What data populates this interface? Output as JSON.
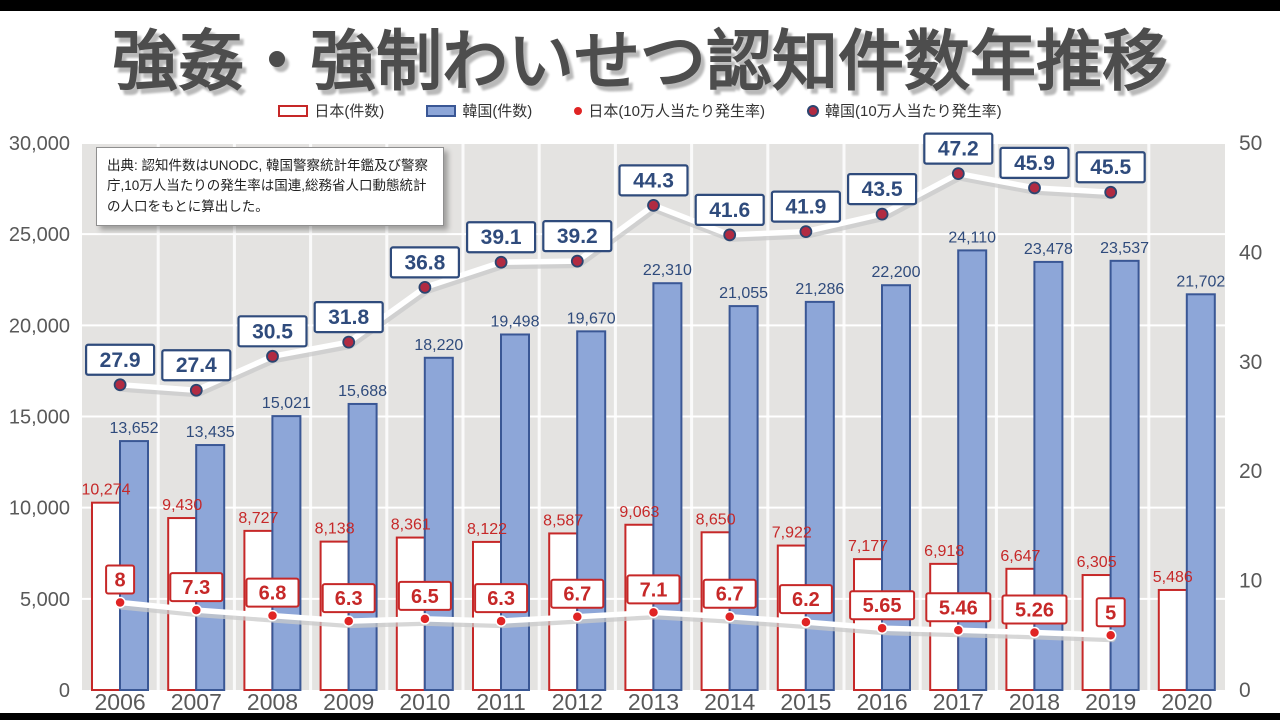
{
  "source_note": "出典: 認知件数はUNODC, 韓国警察統計年鑑及び警察庁,10万人当たりの発生率は国連,総務省人口動態統計の人口をもとに算出した。",
  "chart_data": {
    "type": "combo-bar-line",
    "title": "強姦・強制わいせつ認知件数年推移",
    "categories": [
      "2006",
      "2007",
      "2008",
      "2009",
      "2010",
      "2011",
      "2012",
      "2013",
      "2014",
      "2015",
      "2016",
      "2017",
      "2018",
      "2019",
      "2020"
    ],
    "series": [
      {
        "name": "日本(件数)",
        "type": "bar",
        "axis": "left",
        "values": [
          10274,
          9430,
          8727,
          8138,
          8361,
          8122,
          8587,
          9063,
          8650,
          7922,
          7177,
          6918,
          6647,
          6305,
          5486
        ]
      },
      {
        "name": "韓国(件数)",
        "type": "bar",
        "axis": "left",
        "values": [
          13652,
          13435,
          15021,
          15688,
          18220,
          19498,
          19670,
          22310,
          21055,
          21286,
          22200,
          24110,
          23478,
          23537,
          21702
        ]
      },
      {
        "name": "日本(10万人当たり発生率)",
        "type": "line",
        "axis": "right",
        "values": [
          8,
          7.3,
          6.8,
          6.3,
          6.5,
          6.3,
          6.7,
          7.1,
          6.7,
          6.2,
          5.65,
          5.46,
          5.26,
          5,
          null
        ]
      },
      {
        "name": "韓国(10万人当たり発生率)",
        "type": "line",
        "axis": "right",
        "values": [
          27.9,
          27.4,
          30.5,
          31.8,
          36.8,
          39.1,
          39.2,
          44.3,
          41.6,
          41.9,
          43.5,
          47.2,
          45.9,
          45.5,
          null
        ]
      }
    ],
    "left_axis": {
      "min": 0,
      "max": 30000,
      "step": 5000
    },
    "right_axis": {
      "min": 0,
      "max": 50,
      "step": 10
    },
    "grid": true,
    "legend_position": "top",
    "colors": {
      "plot_bg": "#e4e3e1",
      "grid": "#ffffff",
      "axis_text": "#595959",
      "japan_bar_fill": "#ffffff",
      "japan_bar_stroke": "#c62828",
      "japan_label": "#c62828",
      "korea_bar_fill": "#8da6d8",
      "korea_bar_stroke": "#3a5795",
      "korea_label": "#2f4b7c",
      "rate_line": "#ffffff",
      "line_shadow": "#c9c9c9",
      "japan_dot": "#e02424",
      "korea_dot_fill": "#b12b42",
      "korea_dot_ring": "#2b4570",
      "japan_box": "#c62828",
      "korea_box": "#2f4b7c"
    }
  }
}
